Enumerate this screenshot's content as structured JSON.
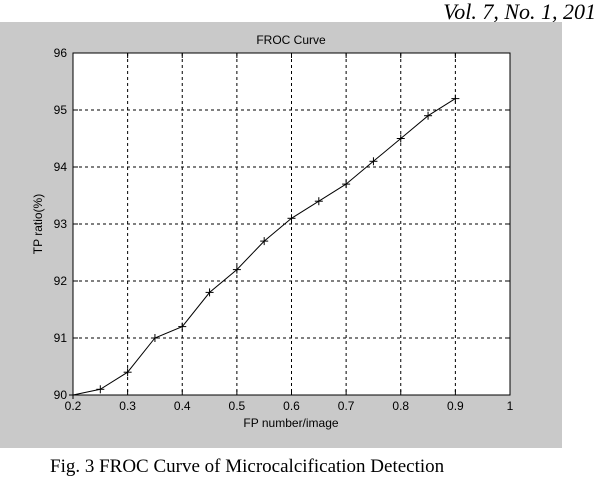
{
  "header": {
    "journal_ref": "Vol. 7, No. 1, 201"
  },
  "caption": {
    "text": "Fig. 3 FROC Curve of Microcalcification Detection"
  },
  "chart_data": {
    "type": "line",
    "title": "FROC Curve",
    "xlabel": "FP number/image",
    "ylabel": "TP ratio(%)",
    "xlim": [
      0.2,
      1
    ],
    "ylim": [
      90,
      96
    ],
    "xticks": [
      "0.2",
      "0.3",
      "0.4",
      "0.5",
      "0.6",
      "0.7",
      "0.8",
      "0.9",
      "1"
    ],
    "yticks": [
      "90",
      "91",
      "92",
      "93",
      "94",
      "95",
      "96"
    ],
    "grid": true,
    "marker": "+",
    "series": [
      {
        "x": [
          0.2,
          0.25,
          0.3,
          0.35,
          0.4,
          0.45,
          0.5,
          0.55,
          0.6,
          0.65,
          0.7,
          0.75,
          0.8,
          0.85,
          0.9
        ],
        "y": [
          90.0,
          90.1,
          90.4,
          91.0,
          91.2,
          91.8,
          92.2,
          92.7,
          93.1,
          93.4,
          93.7,
          94.1,
          94.5,
          94.9,
          95.2
        ]
      }
    ],
    "colors": {
      "figure_bg": "#c9c9c9",
      "axes_bg": "#ffffff",
      "line": "#000000",
      "grid": "#000000"
    }
  }
}
